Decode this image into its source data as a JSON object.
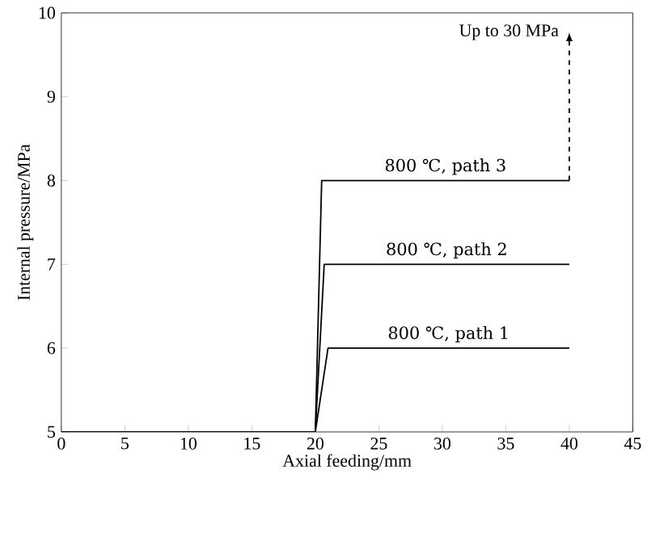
{
  "chart_data": {
    "type": "line",
    "xlabel": "Axial feeding/mm",
    "ylabel": "Internal pressure/MPa",
    "xlim": [
      0,
      45
    ],
    "ylim": [
      5,
      10
    ],
    "xticks": [
      0,
      5,
      10,
      15,
      20,
      25,
      30,
      35,
      40,
      45
    ],
    "yticks": [
      5,
      6,
      7,
      8,
      9,
      10
    ],
    "series": [
      {
        "name": "800 ℃, path 1",
        "color": "#000000",
        "x": [
          0,
          20,
          21,
          40
        ],
        "values": [
          5,
          5,
          6,
          6
        ]
      },
      {
        "name": "800 ℃, path 2",
        "color": "#000000",
        "x": [
          0,
          20,
          20.7,
          40
        ],
        "values": [
          5,
          5,
          7,
          7
        ]
      },
      {
        "name": "800 ℃, path 3",
        "color": "#000000",
        "x": [
          0,
          20,
          20.5,
          40
        ],
        "values": [
          5,
          5,
          8,
          8
        ]
      }
    ],
    "annotations": [
      "Up to 30 MPa"
    ],
    "grid": false,
    "legend": false,
    "marker": "none",
    "line_style": "solid"
  }
}
